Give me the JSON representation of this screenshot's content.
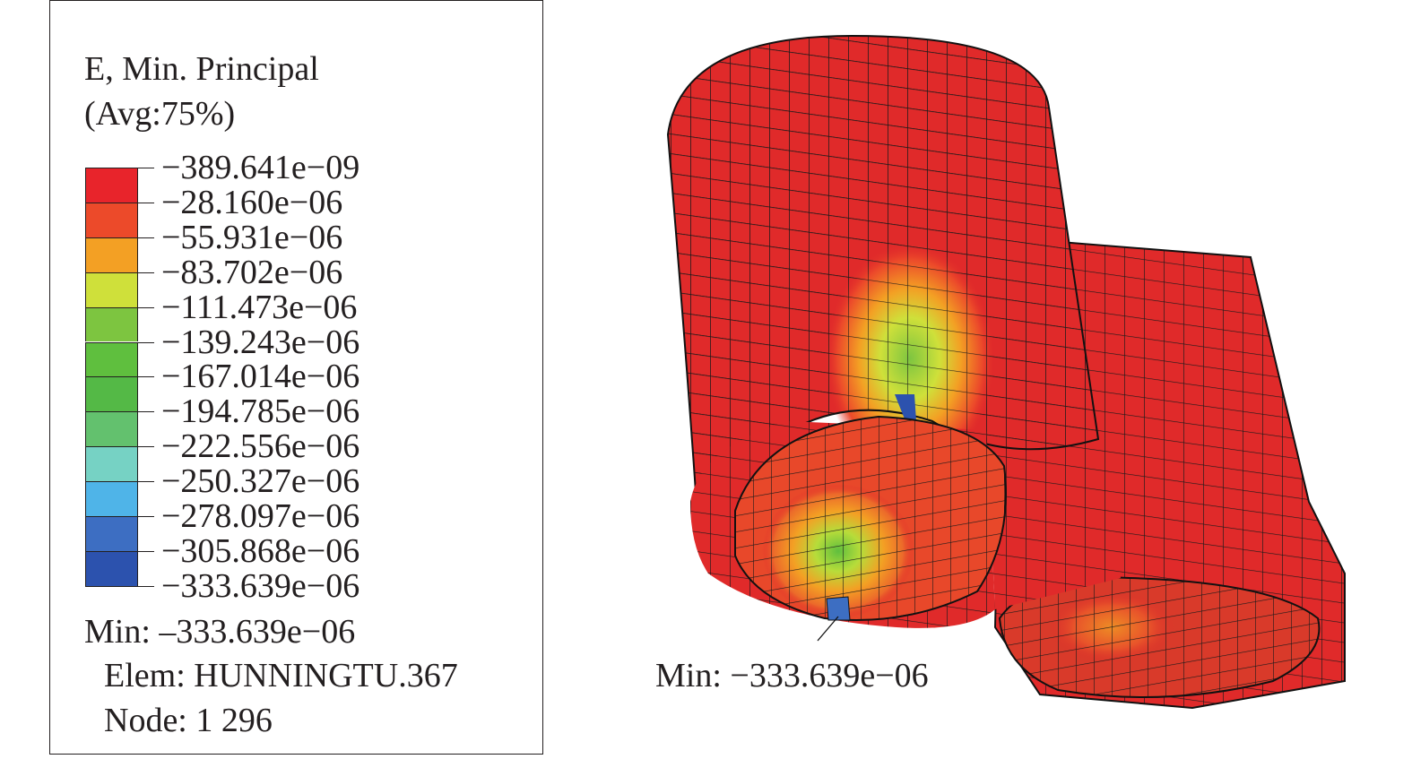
{
  "legend": {
    "title_line1": "E, Min. Principal",
    "title_line2": "(Avg:75%)",
    "levels": [
      "−389.641e−09",
      "−28.160e−06",
      "−55.931e−06",
      "−83.702e−06",
      "−111.473e−06",
      "−139.243e−06",
      "−167.014e−06",
      "−194.785e−06",
      "−222.556e−06",
      "−250.327e−06",
      "−278.097e−06",
      "−305.868e−06",
      "−333.639e−06"
    ],
    "band_colors": [
      "#e8242b",
      "#ec4a2a",
      "#f3a024",
      "#cfe03a",
      "#7dc540",
      "#5fbf3e",
      "#54b946",
      "#63c16e",
      "#76d2c4",
      "#4fb4e8",
      "#3d6ec2",
      "#2c52ae"
    ]
  },
  "info": {
    "min": "Min: –333.639e−06",
    "elem": "Elem: HUNNINGTU.367",
    "node": "Node: 1 296"
  },
  "model": {
    "min_label": "Min: −333.639e−06",
    "base_color": "#e02a2a"
  }
}
